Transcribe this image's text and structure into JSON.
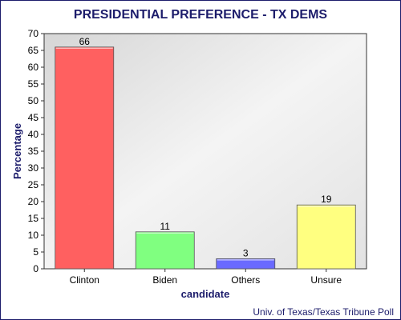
{
  "chart_data": {
    "type": "bar",
    "title": "PRESIDENTIAL PREFERENCE - TX DEMS",
    "xlabel": "candidate",
    "ylabel": "Percentage",
    "categories": [
      "Clinton",
      "Biden",
      "Others",
      "Unsure"
    ],
    "values": [
      66,
      11,
      3,
      19
    ],
    "data_labels": [
      "66",
      "11",
      "3",
      "19"
    ],
    "bar_colors": [
      "#ff6060",
      "#80ff80",
      "#6a6aff",
      "#ffff80"
    ],
    "ylim": [
      0,
      70
    ],
    "yticks": [
      0,
      5,
      10,
      15,
      20,
      25,
      30,
      35,
      40,
      45,
      50,
      55,
      60,
      65,
      70
    ],
    "grid": false,
    "source": "Univ. of Texas/Texas Tribune Poll"
  },
  "colors": {
    "title": "#1c1c6b",
    "axis_label": "#1c1c6b",
    "text": "#000000",
    "plot_border": "#333333"
  }
}
